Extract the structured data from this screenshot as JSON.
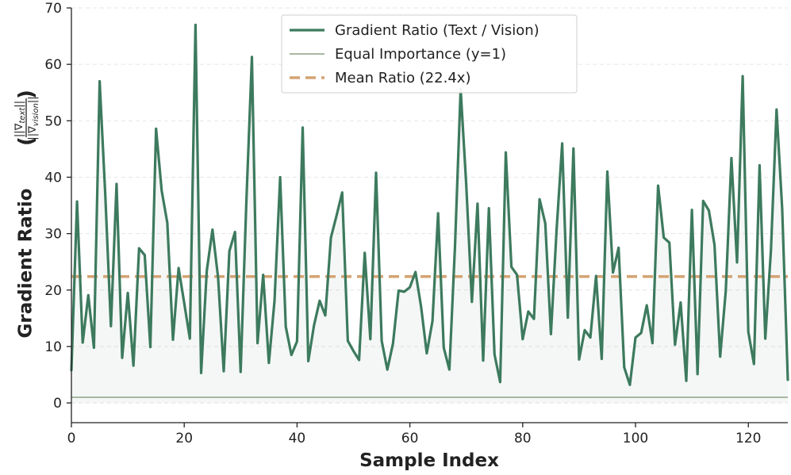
{
  "chart_data": {
    "type": "line",
    "xlabel": "Sample Index",
    "ylabel": "Gradient Ratio",
    "ylabel_fraction": {
      "numerator": "||∇",
      "numerator_sub": "text",
      "numerator_end": "||",
      "denominator": "||∇",
      "denominator_sub": "vision",
      "denominator_end": "||"
    },
    "xlim": [
      0,
      127
    ],
    "ylim": [
      -3.5,
      70
    ],
    "xticks": [
      0,
      20,
      40,
      60,
      80,
      100,
      120
    ],
    "yticks": [
      0,
      10,
      20,
      30,
      40,
      50,
      60,
      70
    ],
    "grid": true,
    "legend_position": "top-center",
    "series": [
      {
        "name": "Gradient Ratio (Text / Vision)",
        "style": "line-fill",
        "color": "#3d7a5e",
        "x_start": 0,
        "values": [
          5.8,
          35.7,
          10.7,
          19.1,
          9.8,
          57.0,
          36.9,
          13.6,
          38.8,
          8.0,
          19.5,
          6.6,
          27.4,
          26.2,
          9.9,
          48.6,
          37.6,
          31.9,
          11.2,
          23.9,
          17.7,
          11.4,
          67.0,
          5.3,
          23.4,
          30.7,
          22.2,
          5.6,
          26.9,
          30.3,
          5.5,
          35.2,
          61.3,
          10.6,
          22.7,
          7.1,
          18.1,
          40.0,
          13.5,
          8.5,
          10.9,
          48.8,
          7.4,
          13.7,
          18.1,
          15.5,
          29.3,
          33.2,
          37.3,
          11.0,
          9.2,
          7.6,
          26.6,
          11.3,
          40.8,
          11.0,
          5.9,
          10.5,
          19.9,
          19.7,
          20.5,
          23.2,
          17.0,
          8.8,
          14.5,
          33.6,
          9.8,
          5.9,
          27.8,
          55.6,
          38.6,
          17.9,
          35.3,
          7.5,
          34.5,
          8.6,
          3.7,
          44.4,
          24.1,
          22.7,
          11.3,
          16.2,
          14.9,
          36.1,
          31.8,
          12.2,
          30.6,
          46.0,
          15.1,
          45.1,
          7.7,
          12.9,
          11.6,
          22.5,
          7.8,
          41.0,
          23.1,
          27.5,
          6.3,
          3.2,
          11.6,
          12.4,
          17.3,
          10.6,
          38.5,
          29.3,
          28.4,
          10.3,
          17.8,
          3.9,
          34.2,
          5.1,
          35.8,
          34.1,
          28.0,
          8.2,
          19.9,
          43.4,
          24.9,
          57.9,
          12.6,
          6.9,
          42.1,
          11.4,
          27.0,
          52.0,
          34.4,
          4.1
        ]
      },
      {
        "name": "Equal Importance (y=1)",
        "style": "hline",
        "value": 1,
        "color": "#a9b8a1"
      },
      {
        "name": "Mean Ratio (22.4x)",
        "style": "hline-dashed",
        "value": 22.4,
        "color": "#d4a373"
      }
    ]
  }
}
